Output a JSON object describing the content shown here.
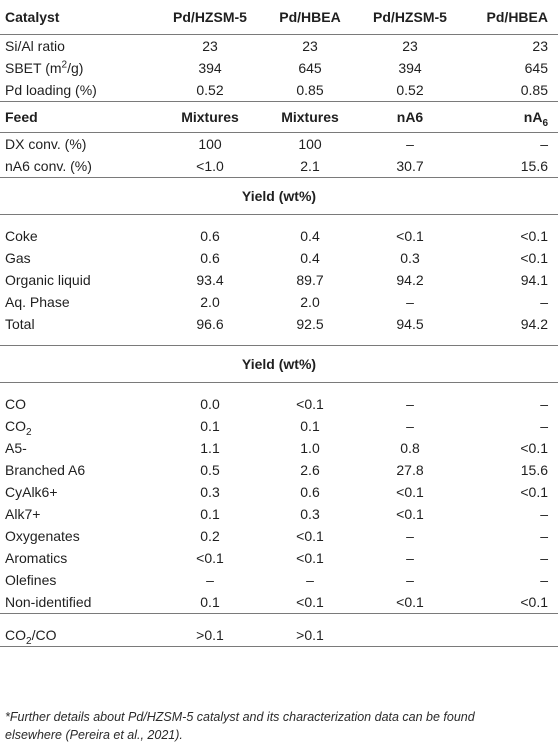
{
  "header": {
    "col0": "Catalyst",
    "col1": "Pd/HZSM-5",
    "col2": "Pd/HBEA",
    "col3": "Pd/HZSM-5",
    "col4": "Pd/HBEA"
  },
  "props": [
    {
      "label": "Si/Al ratio",
      "v": [
        "23",
        "23",
        "23",
        "23"
      ]
    },
    {
      "label_pre": "SBET (m",
      "label_sup": "2",
      "label_post": "/g)",
      "v": [
        "394",
        "645",
        "394",
        "645"
      ]
    },
    {
      "label": "Pd loading (%)",
      "v": [
        "0.52",
        "0.85",
        "0.52",
        "0.85"
      ]
    }
  ],
  "feed": {
    "label": "Feed",
    "v1": "Mixtures",
    "v2": "Mixtures",
    "v3": "nA6",
    "v4_pre": "nA",
    "v4_sub": "6"
  },
  "conversion": [
    {
      "label": "DX conv. (%)",
      "v": [
        "100",
        "100",
        "–",
        "–"
      ]
    },
    {
      "label": "nA6 conv. (%)",
      "v": [
        "<1.0",
        "2.1",
        "30.7",
        "15.6"
      ]
    }
  ],
  "section1": {
    "title": "Yield (wt%)",
    "rows": [
      {
        "label": "Coke",
        "v": [
          "0.6",
          "0.4",
          "<0.1",
          "<0.1"
        ]
      },
      {
        "label": "Gas",
        "v": [
          "0.6",
          "0.4",
          "0.3",
          "<0.1"
        ]
      },
      {
        "label": "Organic liquid",
        "v": [
          "93.4",
          "89.7",
          "94.2",
          "94.1"
        ]
      },
      {
        "label": "Aq. Phase",
        "v": [
          "2.0",
          "2.0",
          "–",
          "–"
        ]
      },
      {
        "label": "Total",
        "v": [
          "96.6",
          "92.5",
          "94.5",
          "94.2"
        ]
      }
    ]
  },
  "section2": {
    "title": "Yield (wt%)",
    "rows": [
      {
        "label": "CO",
        "v": [
          "0.0",
          "<0.1",
          "–",
          "–"
        ]
      },
      {
        "label_pre": "CO",
        "label_sub": "2",
        "v": [
          "0.1",
          "0.1",
          "–",
          "–"
        ]
      },
      {
        "label": "A5-",
        "v": [
          "1.1",
          "1.0",
          "0.8",
          "<0.1"
        ]
      },
      {
        "label": "Branched A6",
        "v": [
          "0.5",
          "2.6",
          "27.8",
          "15.6"
        ]
      },
      {
        "label": "CyAlk6+",
        "v": [
          "0.3",
          "0.6",
          "<0.1",
          "<0.1"
        ]
      },
      {
        "label": "Alk7+",
        "v": [
          "0.1",
          "0.3",
          "<0.1",
          "–"
        ]
      },
      {
        "label": "Oxygenates",
        "v": [
          "0.2",
          "<0.1",
          "–",
          "–"
        ]
      },
      {
        "label": "Aromatics",
        "v": [
          "<0.1",
          "<0.1",
          "–",
          "–"
        ]
      },
      {
        "label": "Olefines",
        "v": [
          "–",
          "–",
          "–",
          "–"
        ]
      },
      {
        "label": "Non-identified",
        "v": [
          "0.1",
          "<0.1",
          "<0.1",
          "<0.1"
        ]
      }
    ]
  },
  "ratio": {
    "label_pre": "CO",
    "label_sub": "2",
    "label_post": "/CO",
    "v": [
      ">0.1",
      ">0.1",
      "",
      ""
    ]
  },
  "footnote": {
    "line1": "*Further details about Pd/HZSM-5 catalyst and its characterization data can be found",
    "line2": "elsewhere (Pereira et al., 2021)."
  }
}
